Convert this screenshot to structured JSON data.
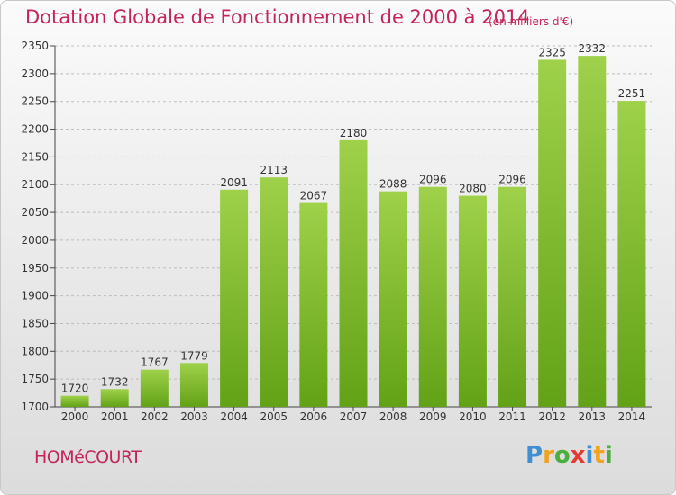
{
  "title": "Dotation Globale de Fonctionnement de 2000 à 2014",
  "subtitle": "(en milliers d'€)",
  "commune": "HOMéCOURT",
  "logo": {
    "letters": [
      "P",
      "r",
      "o",
      "x",
      "i",
      "t",
      "i"
    ],
    "name": "proxiti-logo"
  },
  "colors": {
    "title": "#c4245a",
    "bar": "#7cb82f",
    "grid": "#bdbdbd"
  },
  "chart_data": {
    "type": "bar",
    "title": "Dotation Globale de Fonctionnement de 2000 à 2014",
    "subtitle": "(en milliers d'€)",
    "xlabel": "",
    "ylabel": "",
    "categories": [
      "2000",
      "2001",
      "2002",
      "2003",
      "2004",
      "2005",
      "2006",
      "2007",
      "2008",
      "2009",
      "2010",
      "2011",
      "2012",
      "2013",
      "2014"
    ],
    "values": [
      1720,
      1732,
      1767,
      1779,
      2091,
      2113,
      2067,
      2180,
      2088,
      2096,
      2080,
      2096,
      2325,
      2332,
      2251
    ],
    "ylim": [
      1700,
      2350
    ],
    "yticks": [
      1700,
      1750,
      1800,
      1850,
      1900,
      1950,
      2000,
      2050,
      2100,
      2150,
      2200,
      2250,
      2300,
      2350
    ],
    "grid": true,
    "grid_style": "dashed horizontal",
    "legend": "none"
  }
}
